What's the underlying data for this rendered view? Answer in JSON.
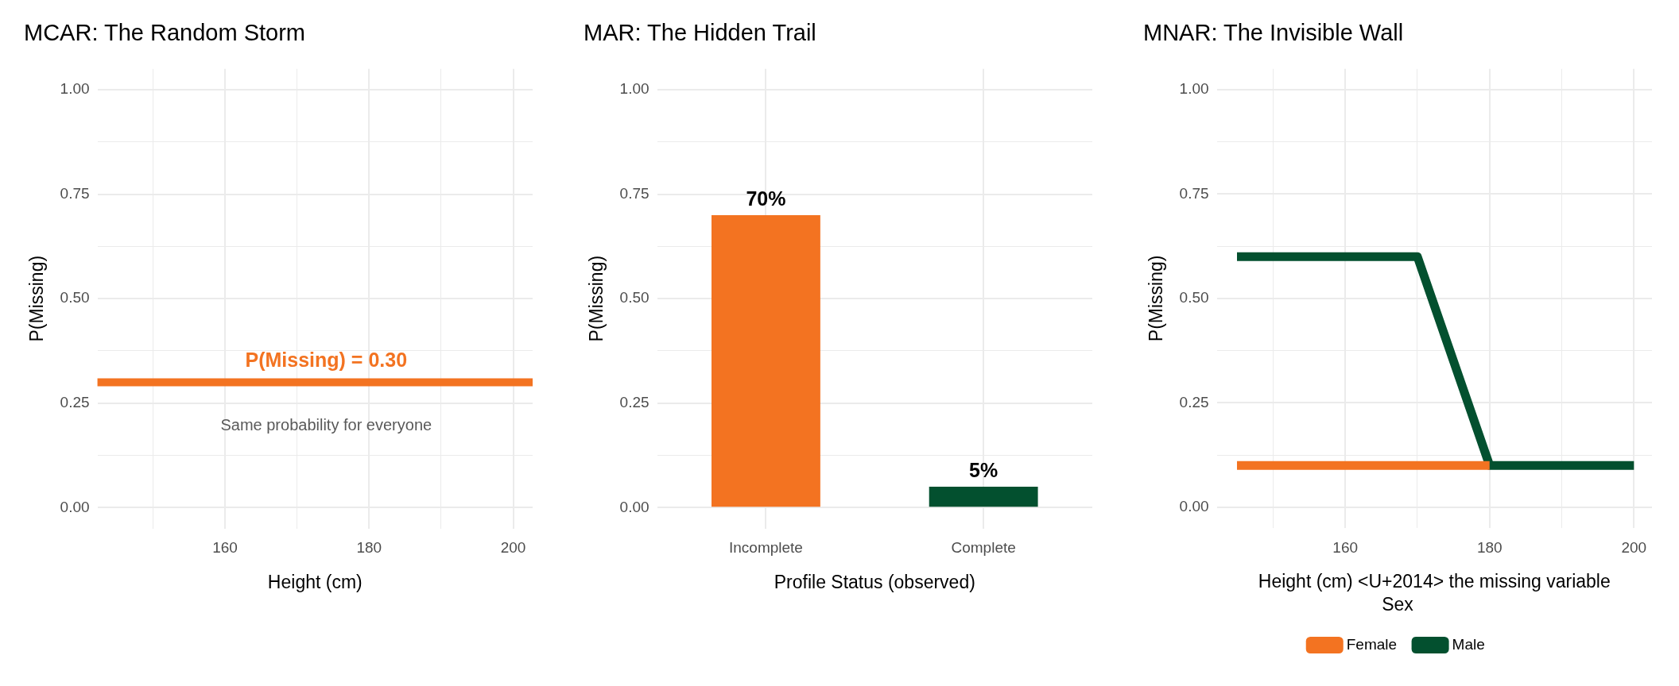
{
  "chart_data": [
    {
      "type": "line",
      "title": "MCAR: The Random Storm",
      "xlabel": "Height (cm)",
      "ylabel": "P(Missing)",
      "xlim": [
        142.3,
        202.7
      ],
      "xticks": [
        {
          "value": 150,
          "label": null
        },
        160,
        {
          "value": 170,
          "label": null
        },
        180,
        {
          "value": 190,
          "label": null
        },
        200
      ],
      "ylim": [
        -0.05,
        1.05
      ],
      "yticks": [
        {
          "value": 0,
          "label": "0.00"
        },
        {
          "value": 0.125,
          "label": null
        },
        {
          "value": 0.25,
          "label": "0.25"
        },
        {
          "value": 0.375,
          "label": null
        },
        {
          "value": 0.5,
          "label": "0.50"
        },
        {
          "value": 0.625,
          "label": null
        },
        {
          "value": 0.75,
          "label": "0.75"
        },
        {
          "value": 0.875,
          "label": null
        },
        {
          "value": 1,
          "label": "1.00"
        }
      ],
      "grid": true,
      "ref_lines": [
        {
          "axis": "y",
          "value": 0.3,
          "label": "P(Missing) = 0.30",
          "color": "#f37321"
        }
      ],
      "annotations": [
        "Same probability for everyone"
      ]
    },
    {
      "type": "bar",
      "title": "MAR: The Hidden Trail",
      "xlabel": "Profile Status (observed)",
      "ylabel": "P(Missing)",
      "categories": [
        "Incomplete",
        "Complete"
      ],
      "values": [
        0.7,
        0.05
      ],
      "colors": [
        "#f37321",
        "#03502f"
      ],
      "value_labels": [
        "70%",
        "5%"
      ],
      "ylim": [
        -0.05,
        1.05
      ],
      "yticks": [
        {
          "value": 0,
          "label": "0.00"
        },
        {
          "value": 0.125,
          "label": null
        },
        {
          "value": 0.25,
          "label": "0.25"
        },
        {
          "value": 0.375,
          "label": null
        },
        {
          "value": 0.5,
          "label": "0.50"
        },
        {
          "value": 0.625,
          "label": null
        },
        {
          "value": 0.75,
          "label": "0.75"
        },
        {
          "value": 0.875,
          "label": null
        },
        {
          "value": 1,
          "label": "1.00"
        }
      ],
      "grid": true
    },
    {
      "type": "line",
      "title": "MNAR: The Invisible Wall",
      "xlabel": "Height (cm) <U+2014> the missing variable",
      "ylabel": "P(Missing)",
      "xlim": [
        142.2,
        202.5
      ],
      "xticks": [
        {
          "value": 150,
          "label": null
        },
        160,
        {
          "value": 170,
          "label": null
        },
        180,
        {
          "value": 190,
          "label": null
        },
        200
      ],
      "ylim": [
        -0.05,
        1.05
      ],
      "yticks": [
        {
          "value": 0,
          "label": "0.00"
        },
        {
          "value": 0.125,
          "label": null
        },
        {
          "value": 0.25,
          "label": "0.25"
        },
        {
          "value": 0.375,
          "label": null
        },
        {
          "value": 0.5,
          "label": "0.50"
        },
        {
          "value": 0.625,
          "label": null
        },
        {
          "value": 0.75,
          "label": "0.75"
        },
        {
          "value": 0.875,
          "label": null
        },
        {
          "value": 1,
          "label": "1.00"
        }
      ],
      "grid": true,
      "legend": "bottom",
      "legend_title": "Sex",
      "marker": "none",
      "series": [
        {
          "name": "Female",
          "color": "#f37321",
          "x": [
            145,
            170,
            180
          ],
          "values": [
            0.1,
            0.1,
            0.1
          ]
        },
        {
          "name": "Male",
          "color": "#03502f",
          "x": [
            145,
            170,
            180,
            200
          ],
          "values": [
            0.6,
            0.6,
            0.1,
            0.1
          ]
        }
      ]
    }
  ]
}
